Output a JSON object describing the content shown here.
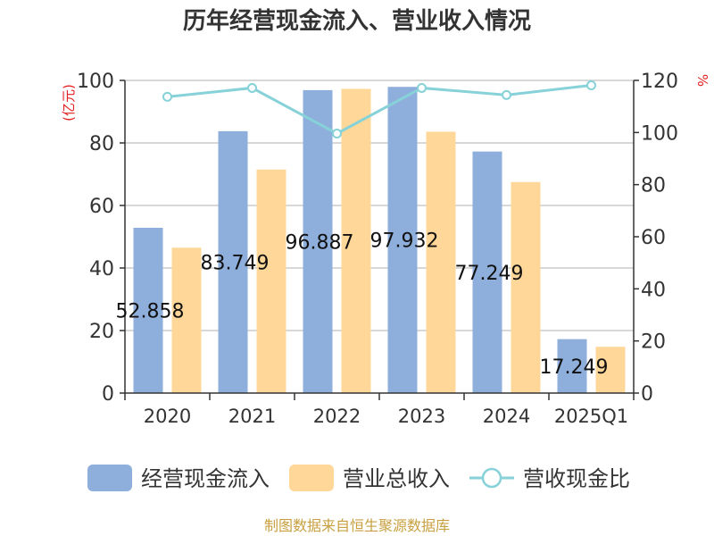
{
  "chart_data": {
    "type": "bar",
    "title": "历年经营现金流入、营业收入情况",
    "categories": [
      "2020",
      "2021",
      "2022",
      "2023",
      "2024",
      "2025Q1"
    ],
    "left_axis": {
      "unit": "(亿元)",
      "ylim": [
        0,
        100
      ],
      "ticks": [
        0,
        20,
        40,
        60,
        80,
        100
      ]
    },
    "right_axis": {
      "unit": "%",
      "ylim": [
        0,
        120
      ],
      "ticks": [
        0,
        20,
        40,
        60,
        80,
        100,
        120
      ]
    },
    "series": [
      {
        "name": "经营现金流入",
        "kind": "bar",
        "axis": "left",
        "color": "#8eaedb",
        "values": [
          52.858,
          83.749,
          96.887,
          97.932,
          77.249,
          17.249
        ],
        "labels": [
          "52.858",
          "83.749",
          "96.887",
          "97.932",
          "77.249",
          "17.249"
        ]
      },
      {
        "name": "营业总收入",
        "kind": "bar",
        "axis": "left",
        "color": "#ffd899",
        "values": [
          46.5,
          71.5,
          97.3,
          83.6,
          67.5,
          14.8
        ]
      },
      {
        "name": "营收现金比",
        "kind": "line",
        "axis": "right",
        "color": "#86d2d8",
        "values": [
          113.7,
          117.1,
          99.6,
          117.1,
          114.4,
          118.1
        ]
      }
    ],
    "legend_position": "bottom",
    "grid": true,
    "source": "制图数据来自恒生聚源数据库"
  }
}
